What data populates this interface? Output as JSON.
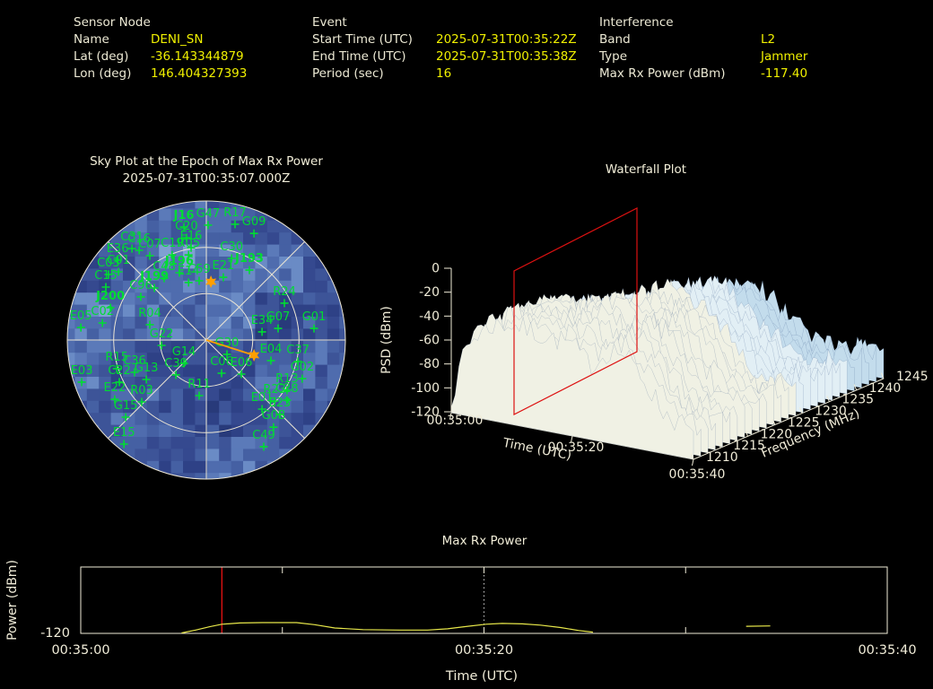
{
  "colors": {
    "background": "#000000",
    "label": "#ece9d4",
    "value": "#f0f000",
    "title": "#f2eed8",
    "axis": "#f0ecd8",
    "grid": "#ece6d4",
    "satellite": "#00dc32",
    "orange": "#ff9f00",
    "event_red": "#dd1111",
    "dotted_white": "#cccccc",
    "power_line": "#e8e84a",
    "sky_palette": [
      "#283a7a",
      "#2e4186",
      "#35498f",
      "#3d5498",
      "#4560a3",
      "#4f6cae",
      "#5b7ab9",
      "#6a8bc5",
      "#7fa0d2"
    ],
    "surface_palette": [
      "#5d87bd",
      "#7ba3cd",
      "#9fc0de",
      "#c3dcec",
      "#e2eff5",
      "#f0f1e4"
    ]
  },
  "header": {
    "sensor": {
      "title": "Sensor Node",
      "rows": [
        {
          "label": "Name",
          "value": "DENI_SN"
        },
        {
          "label": "Lat (deg)",
          "value": "-36.143344879"
        },
        {
          "label": "Lon (deg)",
          "value": "146.404327393"
        }
      ]
    },
    "event": {
      "title": "Event",
      "rows": [
        {
          "label": "Start Time (UTC)",
          "value": "2025-07-31T00:35:22Z"
        },
        {
          "label": "End Time (UTC)",
          "value": "2025-07-31T00:35:38Z"
        },
        {
          "label": "Period (sec)",
          "value": "16"
        }
      ]
    },
    "interference": {
      "title": "Interference",
      "rows": [
        {
          "label": "Band",
          "value": "L2"
        },
        {
          "label": "Type",
          "value": "Jammer"
        },
        {
          "label": "Max Rx Power (dBm)",
          "value": "-117.40"
        }
      ]
    }
  },
  "chart_data": [
    {
      "type": "scatter",
      "projection": "sky-polar",
      "title": "Sky Plot at the Epoch of Max Rx Power",
      "subtitle": "2025-07-31T00:35:07.000Z",
      "elevation_rings": [
        30,
        60
      ],
      "units": "x,y are percent of the square sky-plot box; center=zenith (50,50)",
      "points": [
        {
          "label": "J16",
          "x": 42.2,
          "y": 6.6
        },
        {
          "label": "G47",
          "x": 50.6,
          "y": 5.9
        },
        {
          "label": "R17",
          "x": 60.0,
          "y": 5.6
        },
        {
          "label": "G09",
          "x": 66.6,
          "y": 8.8
        },
        {
          "label": "C20",
          "x": 43.1,
          "y": 10.3
        },
        {
          "label": "E16",
          "x": 44.7,
          "y": 13.8
        },
        {
          "label": "C19",
          "x": 38.1,
          "y": 16.3
        },
        {
          "label": "R05",
          "x": 43.8,
          "y": 16.3
        },
        {
          "label": "C30",
          "x": 58.8,
          "y": 17.5
        },
        {
          "label": "C31",
          "x": 24.1,
          "y": 14.1
        },
        {
          "label": "C16",
          "x": 26.6,
          "y": 14.7
        },
        {
          "label": "E36",
          "x": 19.1,
          "y": 18.1
        },
        {
          "label": "C07",
          "x": 30.3,
          "y": 16.6
        },
        {
          "label": "J193",
          "x": 65.0,
          "y": 21.6
        },
        {
          "label": "E21",
          "x": 55.9,
          "y": 24.1
        },
        {
          "label": "C01",
          "x": 19.4,
          "y": 22.2
        },
        {
          "label": "C03",
          "x": 15.9,
          "y": 23.1
        },
        {
          "label": "C48",
          "x": 35.3,
          "y": 24.4
        },
        {
          "label": "J196",
          "x": 40.6,
          "y": 22.5
        },
        {
          "label": "C59",
          "x": 47.5,
          "y": 25.3
        },
        {
          "label": "E14",
          "x": 43.8,
          "y": 25.9
        },
        {
          "label": "J199",
          "x": 31.9,
          "y": 27.8
        },
        {
          "label": "C15",
          "x": 15.0,
          "y": 27.5
        },
        {
          "label": "C96",
          "x": 27.2,
          "y": 30.9
        },
        {
          "label": "J200",
          "x": 16.6,
          "y": 34.7
        },
        {
          "label": "C02",
          "x": 13.8,
          "y": 40.0
        },
        {
          "label": "E05",
          "x": 6.3,
          "y": 41.6
        },
        {
          "label": "R04",
          "x": 30.3,
          "y": 40.6
        },
        {
          "label": "R24",
          "x": 77.2,
          "y": 33.1
        },
        {
          "label": "E34",
          "x": 69.4,
          "y": 43.1
        },
        {
          "label": "G07",
          "x": 75.0,
          "y": 41.9
        },
        {
          "label": "G01",
          "x": 87.5,
          "y": 41.9
        },
        {
          "label": "G22",
          "x": 34.4,
          "y": 47.8
        },
        {
          "label": "G30",
          "x": 57.2,
          "y": 50.9
        },
        {
          "label": "G14",
          "x": 42.2,
          "y": 54.1
        },
        {
          "label": "R15",
          "x": 18.8,
          "y": 55.9
        },
        {
          "label": "C36",
          "x": 25.0,
          "y": 57.2
        },
        {
          "label": "G13",
          "x": 29.1,
          "y": 59.7
        },
        {
          "label": "C39",
          "x": 39.4,
          "y": 58.1
        },
        {
          "label": "E03",
          "x": 6.6,
          "y": 60.6
        },
        {
          "label": "C22",
          "x": 19.7,
          "y": 60.6
        },
        {
          "label": "E22",
          "x": 18.1,
          "y": 66.6
        },
        {
          "label": "R03",
          "x": 27.5,
          "y": 67.5
        },
        {
          "label": "R11",
          "x": 47.5,
          "y": 65.3
        },
        {
          "label": "G15",
          "x": 21.9,
          "y": 72.8
        },
        {
          "label": "E15",
          "x": 21.3,
          "y": 82.2
        },
        {
          "label": "C06",
          "x": 55.3,
          "y": 57.5
        },
        {
          "label": "E06",
          "x": 62.2,
          "y": 57.8
        },
        {
          "label": "E04",
          "x": 72.5,
          "y": 53.1
        },
        {
          "label": "C37",
          "x": 81.9,
          "y": 53.4
        },
        {
          "label": "G02",
          "x": 83.4,
          "y": 59.4
        },
        {
          "label": "R13",
          "x": 78.1,
          "y": 63.4
        },
        {
          "label": "R23",
          "x": 73.8,
          "y": 67.2
        },
        {
          "label": "C28",
          "x": 78.1,
          "y": 66.9
        },
        {
          "label": "E01",
          "x": 69.4,
          "y": 70.0
        },
        {
          "label": "E23",
          "x": 75.6,
          "y": 71.9
        },
        {
          "label": "G08",
          "x": 73.4,
          "y": 76.3
        },
        {
          "label": "C49",
          "x": 70.0,
          "y": 83.1
        }
      ],
      "pointer_line": {
        "x1": 50,
        "y1": 50,
        "x2": 66.6,
        "y2": 55.3
      },
      "orange_markers": [
        {
          "x": 51.6,
          "y": 29.7
        },
        {
          "x": 66.6,
          "y": 55.3
        }
      ]
    },
    {
      "type": "heatmap",
      "title": "Waterfall Plot",
      "xlabel": "Time (UTC)",
      "ylabel": "PSD (dBm)",
      "zlabel": "Frequency (MHz)",
      "x_tick_labels": [
        "00:35:00",
        "00:35:20",
        "00:35:40"
      ],
      "psd_ticks": [
        0,
        -20,
        -40,
        -60,
        -80,
        -100,
        -120
      ],
      "freq_ticks": [
        1210,
        1215,
        1220,
        1225,
        1230,
        1235,
        1240,
        1245
      ],
      "psd_range": [
        -120,
        0
      ],
      "freq_range_mhz": [
        1210,
        1245
      ],
      "highlight_plane_time": "00:35:07",
      "surface_note": "broadband elevated PSD ridge (~-25 to -60 dBm) across 1210-1245 MHz over the 40 s window, drawn as pale blue-white 3D surface"
    },
    {
      "type": "line",
      "title": "Max Rx Power",
      "xlabel": "Time (UTC)",
      "ylabel": "Power (dBm)",
      "x_tick_labels": [
        "00:35:00",
        "00:35:20",
        "00:35:40"
      ],
      "x_tick_seconds": [
        0,
        20,
        40
      ],
      "minor_tick_seconds": [
        10,
        30
      ],
      "y_tick_labels": [
        "-120"
      ],
      "y_range": [
        -120,
        -104
      ],
      "epoch_line_seconds": 7,
      "dotted_line_seconds": 20,
      "series": [
        {
          "name": "Max Rx Power",
          "segments": [
            [
              [
                5.0,
                -119.9
              ],
              [
                5.7,
                -119.2
              ],
              [
                6.4,
                -118.4
              ],
              [
                7.0,
                -117.8
              ],
              [
                7.9,
                -117.5
              ],
              [
                9.0,
                -117.4
              ],
              [
                10.7,
                -117.4
              ],
              [
                11.6,
                -117.9
              ],
              [
                12.6,
                -118.7
              ],
              [
                14.0,
                -119.1
              ],
              [
                15.8,
                -119.2
              ],
              [
                17.2,
                -119.2
              ],
              [
                18.2,
                -118.9
              ],
              [
                19.2,
                -118.3
              ],
              [
                20.1,
                -117.8
              ],
              [
                20.9,
                -117.6
              ],
              [
                21.9,
                -117.7
              ],
              [
                22.8,
                -118.0
              ],
              [
                23.8,
                -118.6
              ],
              [
                24.7,
                -119.3
              ],
              [
                25.4,
                -119.7
              ]
            ],
            [
              [
                33.0,
                -118.3
              ],
              [
                34.2,
                -118.2
              ]
            ]
          ]
        }
      ]
    }
  ]
}
